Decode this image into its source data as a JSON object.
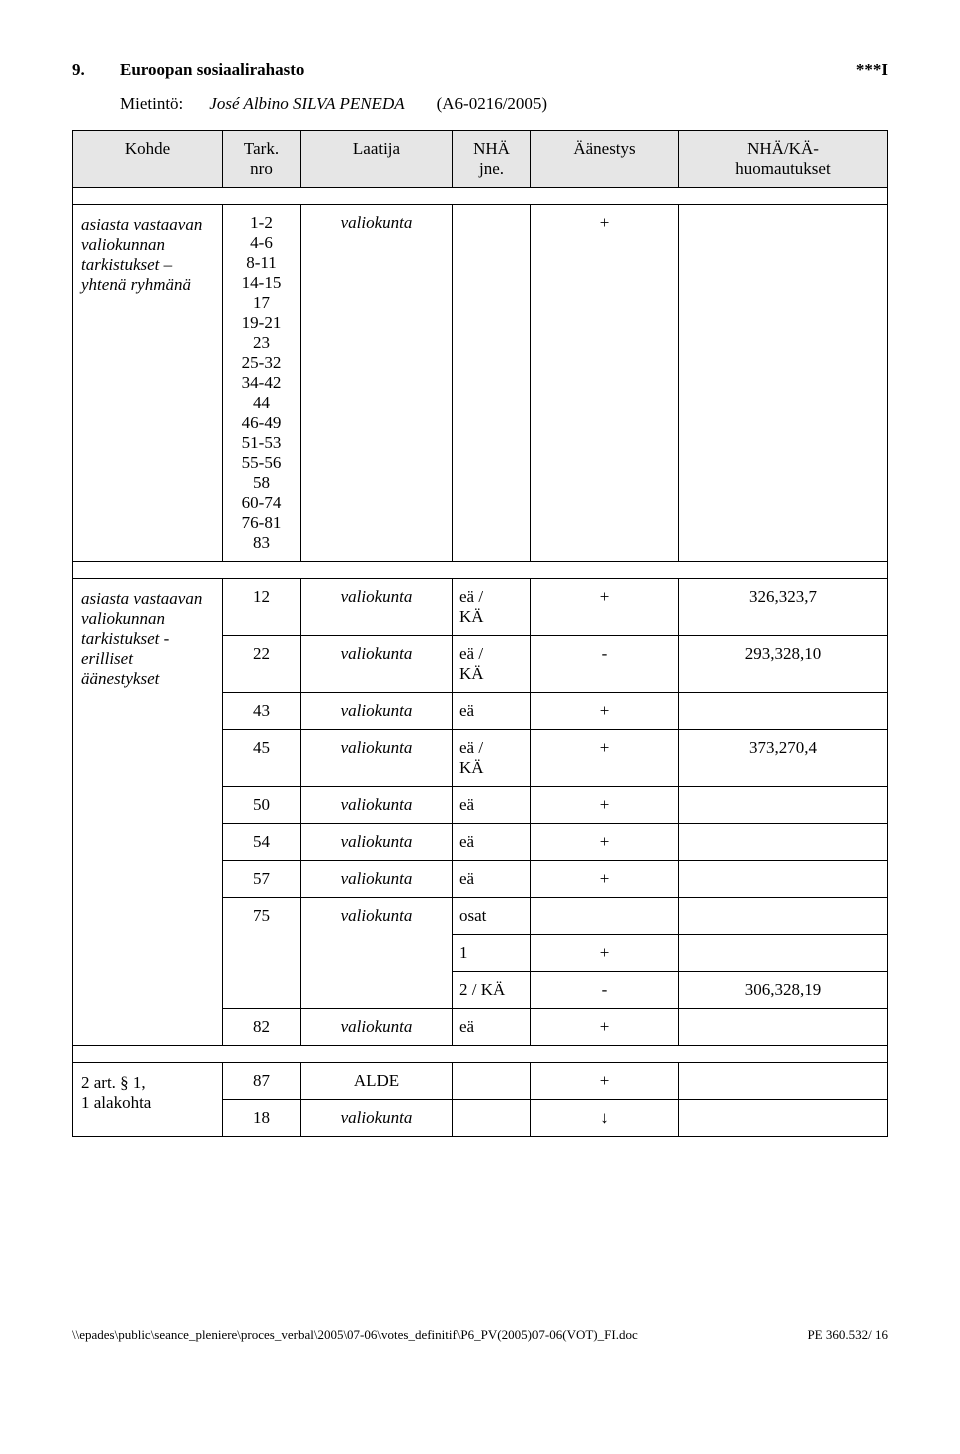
{
  "heading": {
    "number": "9.",
    "title": "Euroopan sosiaalirahasto",
    "marker": "***I"
  },
  "subhead": {
    "label": "Mietintö:",
    "author": "José Albino SILVA PENEDA",
    "docref": "(A6-0216/2005)"
  },
  "columns": {
    "kohde": "Kohde",
    "tark1": "Tark.",
    "tark2": "nro",
    "laatija": "Laatija",
    "nha1": "NHÄ",
    "nha2": "jne.",
    "aanestys": "Äänestys",
    "huom1": "NHÄ/KÄ-",
    "huom2": "huomautukset"
  },
  "block1": {
    "label1": "asiasta vastaavan",
    "label2": "valiokunnan",
    "label3": "tarkistukset –",
    "label4": "yhtenä ryhmänä",
    "ranges": [
      "1-2",
      "4-6",
      "8-11",
      "14-15",
      "17",
      "19-21",
      "23",
      "25-32",
      "34-42",
      "44",
      "46-49",
      "51-53",
      "55-56",
      "58",
      "60-74",
      "76-81",
      "83"
    ],
    "laatija": "valiokunta",
    "result": "+"
  },
  "block2": {
    "label1": "asiasta vastaavan",
    "label2": "valiokunnan",
    "label3": "tarkistukset -",
    "label4": "erilliset äänestykset",
    "r12": {
      "num": "12",
      "laatija": "valiokunta",
      "nha1": "eä /",
      "nha2": "KÄ",
      "res": "+",
      "huom": "326,323,7"
    },
    "r22": {
      "num": "22",
      "laatija": "valiokunta",
      "nha1": "eä /",
      "nha2": "KÄ",
      "res": "-",
      "huom": "293,328,10"
    },
    "r43": {
      "num": "43",
      "laatija": "valiokunta",
      "nha": "eä",
      "res": "+"
    },
    "r45": {
      "num": "45",
      "laatija": "valiokunta",
      "nha1": "eä /",
      "nha2": "KÄ",
      "res": "+",
      "huom": "373,270,4"
    },
    "r50": {
      "num": "50",
      "laatija": "valiokunta",
      "nha": "eä",
      "res": "+"
    },
    "r54": {
      "num": "54",
      "laatija": "valiokunta",
      "nha": "eä",
      "res": "+"
    },
    "r57": {
      "num": "57",
      "laatija": "valiokunta",
      "nha": "eä",
      "res": "+"
    },
    "r75": {
      "num": "75",
      "laatija": "valiokunta",
      "nha": "osat"
    },
    "r75a": {
      "nha": "1",
      "res": "+"
    },
    "r75b": {
      "nha": "2 / KÄ",
      "res": "-",
      "huom": "306,328,19"
    },
    "r82": {
      "num": "82",
      "laatija": "valiokunta",
      "nha": "eä",
      "res": "+"
    }
  },
  "block3": {
    "label1": "2 art. § 1,",
    "label2": "1 alakohta",
    "r87": {
      "num": "87",
      "laatija": "ALDE",
      "res": "+"
    },
    "r18": {
      "num": "18",
      "laatija": "valiokunta",
      "res": "↓"
    }
  },
  "footer": {
    "left": "\\\\epades\\public\\seance_pleniere\\proces_verbal\\2005\\07-06\\votes_definitif\\P6_PV(2005)07-06(VOT)_FI.doc",
    "right": "PE 360.532/ 16"
  }
}
